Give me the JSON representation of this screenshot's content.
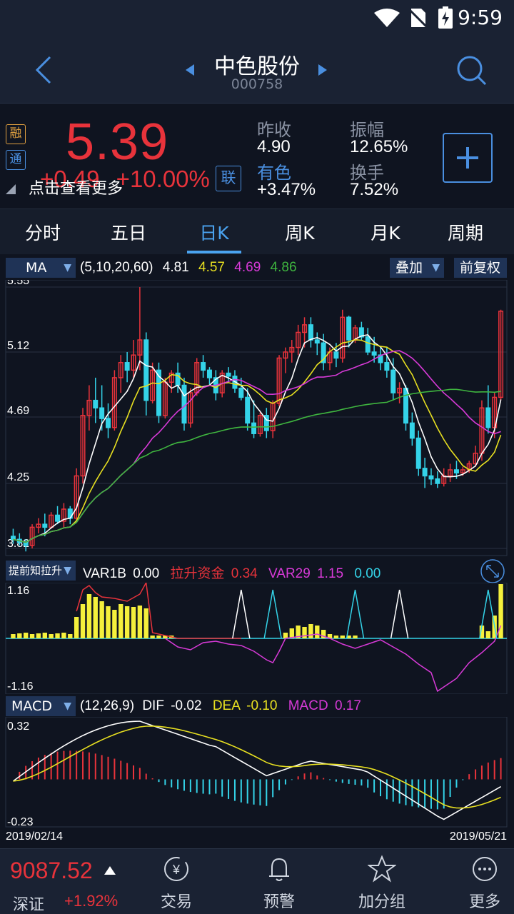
{
  "status": {
    "time": "9:59"
  },
  "header": {
    "title": "中色股份",
    "code": "000758"
  },
  "quote": {
    "price": "5.39",
    "change": "+0.49",
    "change_pct": "+10.00%",
    "hint": "点击查看更多",
    "tag_rong": "融",
    "tag_tong": "通",
    "tag_lian": "联",
    "prev_close_label": "昨收",
    "prev_close": "4.90",
    "sector_label": "有色",
    "sector_change": "+3.47%",
    "amplitude_label": "振幅",
    "amplitude": "12.65%",
    "turnover_label": "换手",
    "turnover": "7.52%"
  },
  "tabs": [
    "分时",
    "五日",
    "日K",
    "周K",
    "月K",
    "周期"
  ],
  "active_tab": 2,
  "ma_bar": {
    "select": "MA",
    "params": "(5,10,20,60)",
    "v1": "4.81",
    "v2": "4.57",
    "v3": "4.69",
    "v4": "4.86",
    "overlay": "叠加",
    "adjust": "前复权"
  },
  "var_bar": {
    "select": "提前知拉升",
    "k1": "VAR1B",
    "v1": "0.00",
    "k2": "拉升资金",
    "v2": "0.34",
    "k3": "VAR29",
    "v3": "1.15",
    "v4": "0.00"
  },
  "macd_bar": {
    "select": "MACD",
    "params": "(12,26,9)",
    "k1": "DIF",
    "v1": "-0.02",
    "k2": "DEA",
    "v2": "-0.10",
    "k3": "MACD",
    "v3": "0.17"
  },
  "colors": {
    "up": "#e8333b",
    "down": "#34d3e8",
    "ma5": "#ffffff",
    "ma10": "#e8e020",
    "ma20": "#d83ad8",
    "ma60": "#3fb53f"
  },
  "chart_data": [
    {
      "type": "candlestick",
      "y_ticks": [
        "5.55",
        "5.12",
        "4.69",
        "4.25",
        "3.82"
      ],
      "ylim": [
        3.82,
        5.55
      ],
      "x_start": "2019/02/14",
      "x_end": "2019/05/21",
      "candles": [
        [
          3.9,
          3.95,
          3.85,
          3.88
        ],
        [
          3.88,
          3.92,
          3.84,
          3.86
        ],
        [
          3.86,
          3.88,
          3.8,
          3.84
        ],
        [
          3.84,
          3.98,
          3.82,
          3.96
        ],
        [
          3.96,
          4.02,
          3.92,
          3.98
        ],
        [
          3.98,
          4.05,
          3.9,
          3.96
        ],
        [
          3.96,
          4.06,
          3.95,
          4.04
        ],
        [
          4.04,
          4.1,
          3.98,
          4.0
        ],
        [
          4.0,
          4.12,
          3.96,
          4.08
        ],
        [
          4.08,
          4.1,
          3.98,
          4.02
        ],
        [
          4.02,
          4.35,
          4.0,
          4.3
        ],
        [
          4.3,
          4.75,
          4.25,
          4.7
        ],
        [
          4.7,
          4.9,
          4.6,
          4.8
        ],
        [
          4.8,
          4.95,
          4.65,
          4.75
        ],
        [
          4.75,
          4.9,
          4.6,
          4.68
        ],
        [
          4.68,
          4.78,
          4.55,
          4.62
        ],
        [
          4.62,
          5.0,
          4.6,
          4.95
        ],
        [
          4.95,
          5.1,
          4.85,
          5.05
        ],
        [
          5.05,
          5.12,
          4.92,
          5.0
        ],
        [
          5.0,
          5.2,
          4.95,
          5.1
        ],
        [
          5.1,
          5.55,
          5.0,
          5.2
        ],
        [
          5.2,
          5.25,
          4.7,
          4.8
        ],
        [
          4.8,
          5.05,
          4.78,
          5.0
        ],
        [
          5.0,
          5.05,
          4.65,
          4.7
        ],
        [
          4.7,
          4.95,
          4.68,
          4.92
        ],
        [
          4.92,
          5.0,
          4.85,
          4.98
        ],
        [
          4.98,
          5.05,
          4.85,
          4.9
        ],
        [
          4.9,
          4.95,
          4.6,
          4.65
        ],
        [
          4.65,
          4.88,
          4.62,
          4.85
        ],
        [
          4.85,
          5.08,
          4.83,
          5.05
        ],
        [
          5.05,
          5.1,
          4.95,
          5.0
        ],
        [
          5.0,
          5.02,
          4.9,
          4.95
        ],
        [
          4.95,
          5.0,
          4.8,
          4.85
        ],
        [
          4.85,
          5.0,
          4.82,
          4.98
        ],
        [
          4.98,
          5.02,
          4.92,
          4.96
        ],
        [
          4.96,
          5.0,
          4.85,
          4.88
        ],
        [
          4.88,
          4.95,
          4.8,
          4.82
        ],
        [
          4.82,
          4.88,
          4.6,
          4.65
        ],
        [
          4.65,
          4.8,
          4.55,
          4.58
        ],
        [
          4.58,
          4.72,
          4.56,
          4.7
        ],
        [
          4.7,
          4.75,
          4.55,
          4.6
        ],
        [
          4.6,
          4.8,
          4.55,
          4.78
        ],
        [
          4.78,
          5.1,
          4.76,
          5.08
        ],
        [
          5.08,
          5.15,
          4.98,
          5.12
        ],
        [
          5.12,
          5.2,
          5.05,
          5.15
        ],
        [
          5.15,
          5.3,
          5.1,
          5.25
        ],
        [
          5.25,
          5.35,
          5.15,
          5.3
        ],
        [
          5.3,
          5.35,
          5.15,
          5.2
        ],
        [
          5.2,
          5.25,
          5.1,
          5.18
        ],
        [
          5.18,
          5.24,
          5.0,
          5.05
        ],
        [
          5.05,
          5.15,
          5.0,
          5.12
        ],
        [
          5.12,
          5.18,
          5.02,
          5.08
        ],
        [
          5.08,
          5.4,
          5.05,
          5.35
        ],
        [
          5.35,
          5.36,
          5.15,
          5.2
        ],
        [
          5.2,
          5.3,
          5.18,
          5.28
        ],
        [
          5.28,
          5.32,
          5.2,
          5.22
        ],
        [
          5.22,
          5.28,
          5.1,
          5.12
        ],
        [
          5.12,
          5.22,
          5.05,
          5.1
        ],
        [
          5.1,
          5.15,
          5.0,
          5.05
        ],
        [
          5.05,
          5.15,
          4.95,
          5.0
        ],
        [
          5.0,
          5.08,
          4.8,
          4.85
        ],
        [
          4.85,
          4.92,
          4.78,
          4.88
        ],
        [
          4.88,
          4.9,
          4.6,
          4.65
        ],
        [
          4.65,
          4.72,
          4.5,
          4.55
        ],
        [
          4.55,
          4.6,
          4.3,
          4.35
        ],
        [
          4.35,
          4.42,
          4.22,
          4.3
        ],
        [
          4.3,
          4.35,
          4.24,
          4.28
        ],
        [
          4.28,
          4.33,
          4.22,
          4.25
        ],
        [
          4.25,
          4.35,
          4.23,
          4.3
        ],
        [
          4.3,
          4.38,
          4.26,
          4.34
        ],
        [
          4.34,
          4.4,
          4.28,
          4.32
        ],
        [
          4.32,
          4.36,
          4.3,
          4.34
        ],
        [
          4.34,
          4.4,
          4.32,
          4.38
        ],
        [
          4.38,
          4.5,
          4.36,
          4.45
        ],
        [
          4.45,
          4.8,
          4.4,
          4.75
        ],
        [
          4.75,
          4.9,
          4.58,
          4.62
        ],
        [
          4.62,
          4.85,
          4.55,
          4.82
        ],
        [
          4.82,
          5.4,
          4.8,
          5.39
        ]
      ]
    },
    {
      "type": "line",
      "y_ticks": [
        "1.16",
        "-1.16"
      ],
      "ylim": [
        -1.16,
        1.16
      ]
    },
    {
      "type": "bar",
      "y_ticks": [
        "0.32",
        "-0.23"
      ],
      "ylim": [
        -0.23,
        0.32
      ]
    }
  ],
  "bottom": {
    "index_value": "9087.52",
    "index_name": "深证",
    "index_change": "+1.92%",
    "nav": [
      "交易",
      "预警",
      "加分组",
      "更多"
    ]
  }
}
